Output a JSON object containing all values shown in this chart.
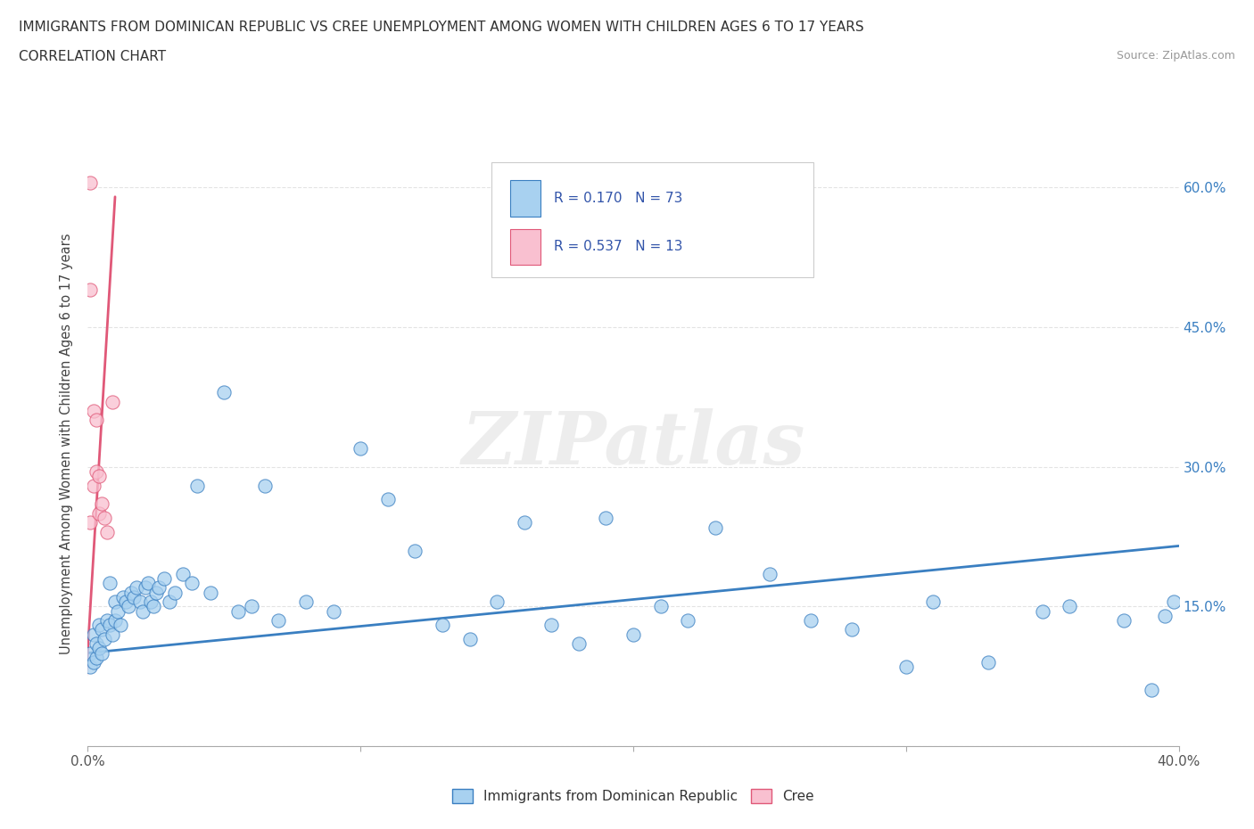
{
  "title_line1": "IMMIGRANTS FROM DOMINICAN REPUBLIC VS CREE UNEMPLOYMENT AMONG WOMEN WITH CHILDREN AGES 6 TO 17 YEARS",
  "title_line2": "CORRELATION CHART",
  "source_text": "Source: ZipAtlas.com",
  "ylabel": "Unemployment Among Women with Children Ages 6 to 17 years",
  "xlim": [
    0.0,
    0.4
  ],
  "ylim": [
    0.0,
    0.65
  ],
  "xticks": [
    0.0,
    0.1,
    0.2,
    0.3,
    0.4
  ],
  "xticklabels": [
    "0.0%",
    "",
    "",
    "",
    "40.0%"
  ],
  "yticks": [
    0.0,
    0.15,
    0.3,
    0.45,
    0.6
  ],
  "yticklabels_right": [
    "",
    "15.0%",
    "30.0%",
    "45.0%",
    "60.0%"
  ],
  "blue_color": "#a8d1f0",
  "pink_color": "#f9c0d0",
  "blue_line_color": "#3a7fc1",
  "pink_line_color": "#e05878",
  "watermark": "ZIPatlas",
  "legend_label1": "Immigrants from Dominican Republic",
  "legend_label2": "Cree",
  "legend_R1": "R = 0.170",
  "legend_N1": "N = 73",
  "legend_R2": "R = 0.537",
  "legend_N2": "N = 13",
  "blue_scatter_x": [
    0.001,
    0.001,
    0.002,
    0.002,
    0.003,
    0.003,
    0.004,
    0.004,
    0.005,
    0.005,
    0.006,
    0.007,
    0.008,
    0.008,
    0.009,
    0.01,
    0.01,
    0.011,
    0.012,
    0.013,
    0.014,
    0.015,
    0.016,
    0.017,
    0.018,
    0.019,
    0.02,
    0.021,
    0.022,
    0.023,
    0.024,
    0.025,
    0.026,
    0.028,
    0.03,
    0.032,
    0.035,
    0.038,
    0.04,
    0.045,
    0.05,
    0.055,
    0.06,
    0.065,
    0.07,
    0.08,
    0.09,
    0.1,
    0.11,
    0.12,
    0.13,
    0.14,
    0.15,
    0.16,
    0.17,
    0.18,
    0.19,
    0.2,
    0.21,
    0.22,
    0.23,
    0.25,
    0.265,
    0.28,
    0.3,
    0.31,
    0.33,
    0.35,
    0.36,
    0.38,
    0.39,
    0.395,
    0.398
  ],
  "blue_scatter_y": [
    0.085,
    0.1,
    0.09,
    0.12,
    0.095,
    0.11,
    0.105,
    0.13,
    0.1,
    0.125,
    0.115,
    0.135,
    0.13,
    0.175,
    0.12,
    0.135,
    0.155,
    0.145,
    0.13,
    0.16,
    0.155,
    0.15,
    0.165,
    0.16,
    0.17,
    0.155,
    0.145,
    0.17,
    0.175,
    0.155,
    0.15,
    0.165,
    0.17,
    0.18,
    0.155,
    0.165,
    0.185,
    0.175,
    0.28,
    0.165,
    0.38,
    0.145,
    0.15,
    0.28,
    0.135,
    0.155,
    0.145,
    0.32,
    0.265,
    0.21,
    0.13,
    0.115,
    0.155,
    0.24,
    0.13,
    0.11,
    0.245,
    0.12,
    0.15,
    0.135,
    0.235,
    0.185,
    0.135,
    0.125,
    0.085,
    0.155,
    0.09,
    0.145,
    0.15,
    0.135,
    0.06,
    0.14,
    0.155
  ],
  "pink_scatter_x": [
    0.001,
    0.001,
    0.001,
    0.002,
    0.002,
    0.003,
    0.003,
    0.004,
    0.004,
    0.005,
    0.006,
    0.007,
    0.009
  ],
  "pink_scatter_y": [
    0.605,
    0.49,
    0.24,
    0.36,
    0.28,
    0.35,
    0.295,
    0.25,
    0.29,
    0.26,
    0.245,
    0.23,
    0.37
  ],
  "blue_trend_x": [
    0.0,
    0.4
  ],
  "blue_trend_y": [
    0.1,
    0.215
  ],
  "pink_trend_x": [
    -0.001,
    0.01
  ],
  "pink_trend_y": [
    0.055,
    0.59
  ]
}
